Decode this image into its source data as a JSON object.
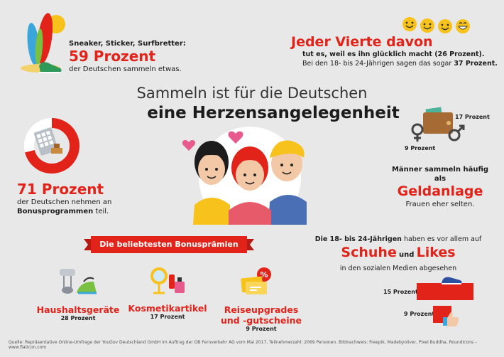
{
  "top_left": {
    "subtitle": "Sneaker, Sticker, Surfbretter:",
    "headline": "59 Prozent",
    "text": "der Deutschen sammeln etwas."
  },
  "top_right": {
    "headline": "Jeder Vierte davon",
    "line1": "tut es, weil es ihn glücklich macht (26 Prozent).",
    "line2_prefix": "Bei den 18- bis 24-Jährigen sagen das sogar ",
    "line2_value": "37 Prozent."
  },
  "title": {
    "line1": "Sammeln ist für die Deutschen",
    "line2": "eine Herzensangelegenheit"
  },
  "bonus_programs": {
    "headline": "71 Prozent",
    "line1": "der Deutschen nehmen an",
    "line2_bold": "Bonusprogrammen",
    "line2_rest": " teil.",
    "donut_fraction": 0.71
  },
  "gender": {
    "male_value": "17 Prozent",
    "female_value": "9 Prozent",
    "line1": "Männer sammeln häufig als",
    "headline": "Geldanlage",
    "line3": "Frauen eher selten."
  },
  "bonus_premiums": {
    "banner": "Die beliebtesten Bonusprämien",
    "items": [
      {
        "label": "Haushaltsgeräte",
        "value": "28 Prozent"
      },
      {
        "label": "Kosmetikartikel",
        "value": "17 Prozent"
      },
      {
        "label": "Reiseupgrades und -gutscheine",
        "value": "9 Prozent"
      }
    ]
  },
  "young": {
    "line1_bold": "Die 18- bis 24-Jährigen",
    "line1_rest": " haben es vor allem auf",
    "word1": "Schuhe",
    "connector": "und",
    "word2": "Likes",
    "line3": "in den sozialen Medien abgesehen",
    "shoes_value": "15 Prozent",
    "likes_value": "9 Prozent",
    "shoes_fraction": 0.15,
    "likes_fraction": 0.09
  },
  "footer": {
    "source": "Quelle: Repräsentative Online-Umfrage der YouGov Deutschland GmbH im Auftrag der DB Fernverkehr AG vom Mai 2017, Teilnehmerzahl: 2069 Personen. Bildnachweis: Freepik, Madebyoliver, Pixel Buddha, Roundicons – www.flaticon.com"
  },
  "colors": {
    "accent": "#e2231a",
    "background": "#e8e8e8",
    "yellow": "#f7c21c",
    "blue_shirt": "#4a6fb5"
  }
}
